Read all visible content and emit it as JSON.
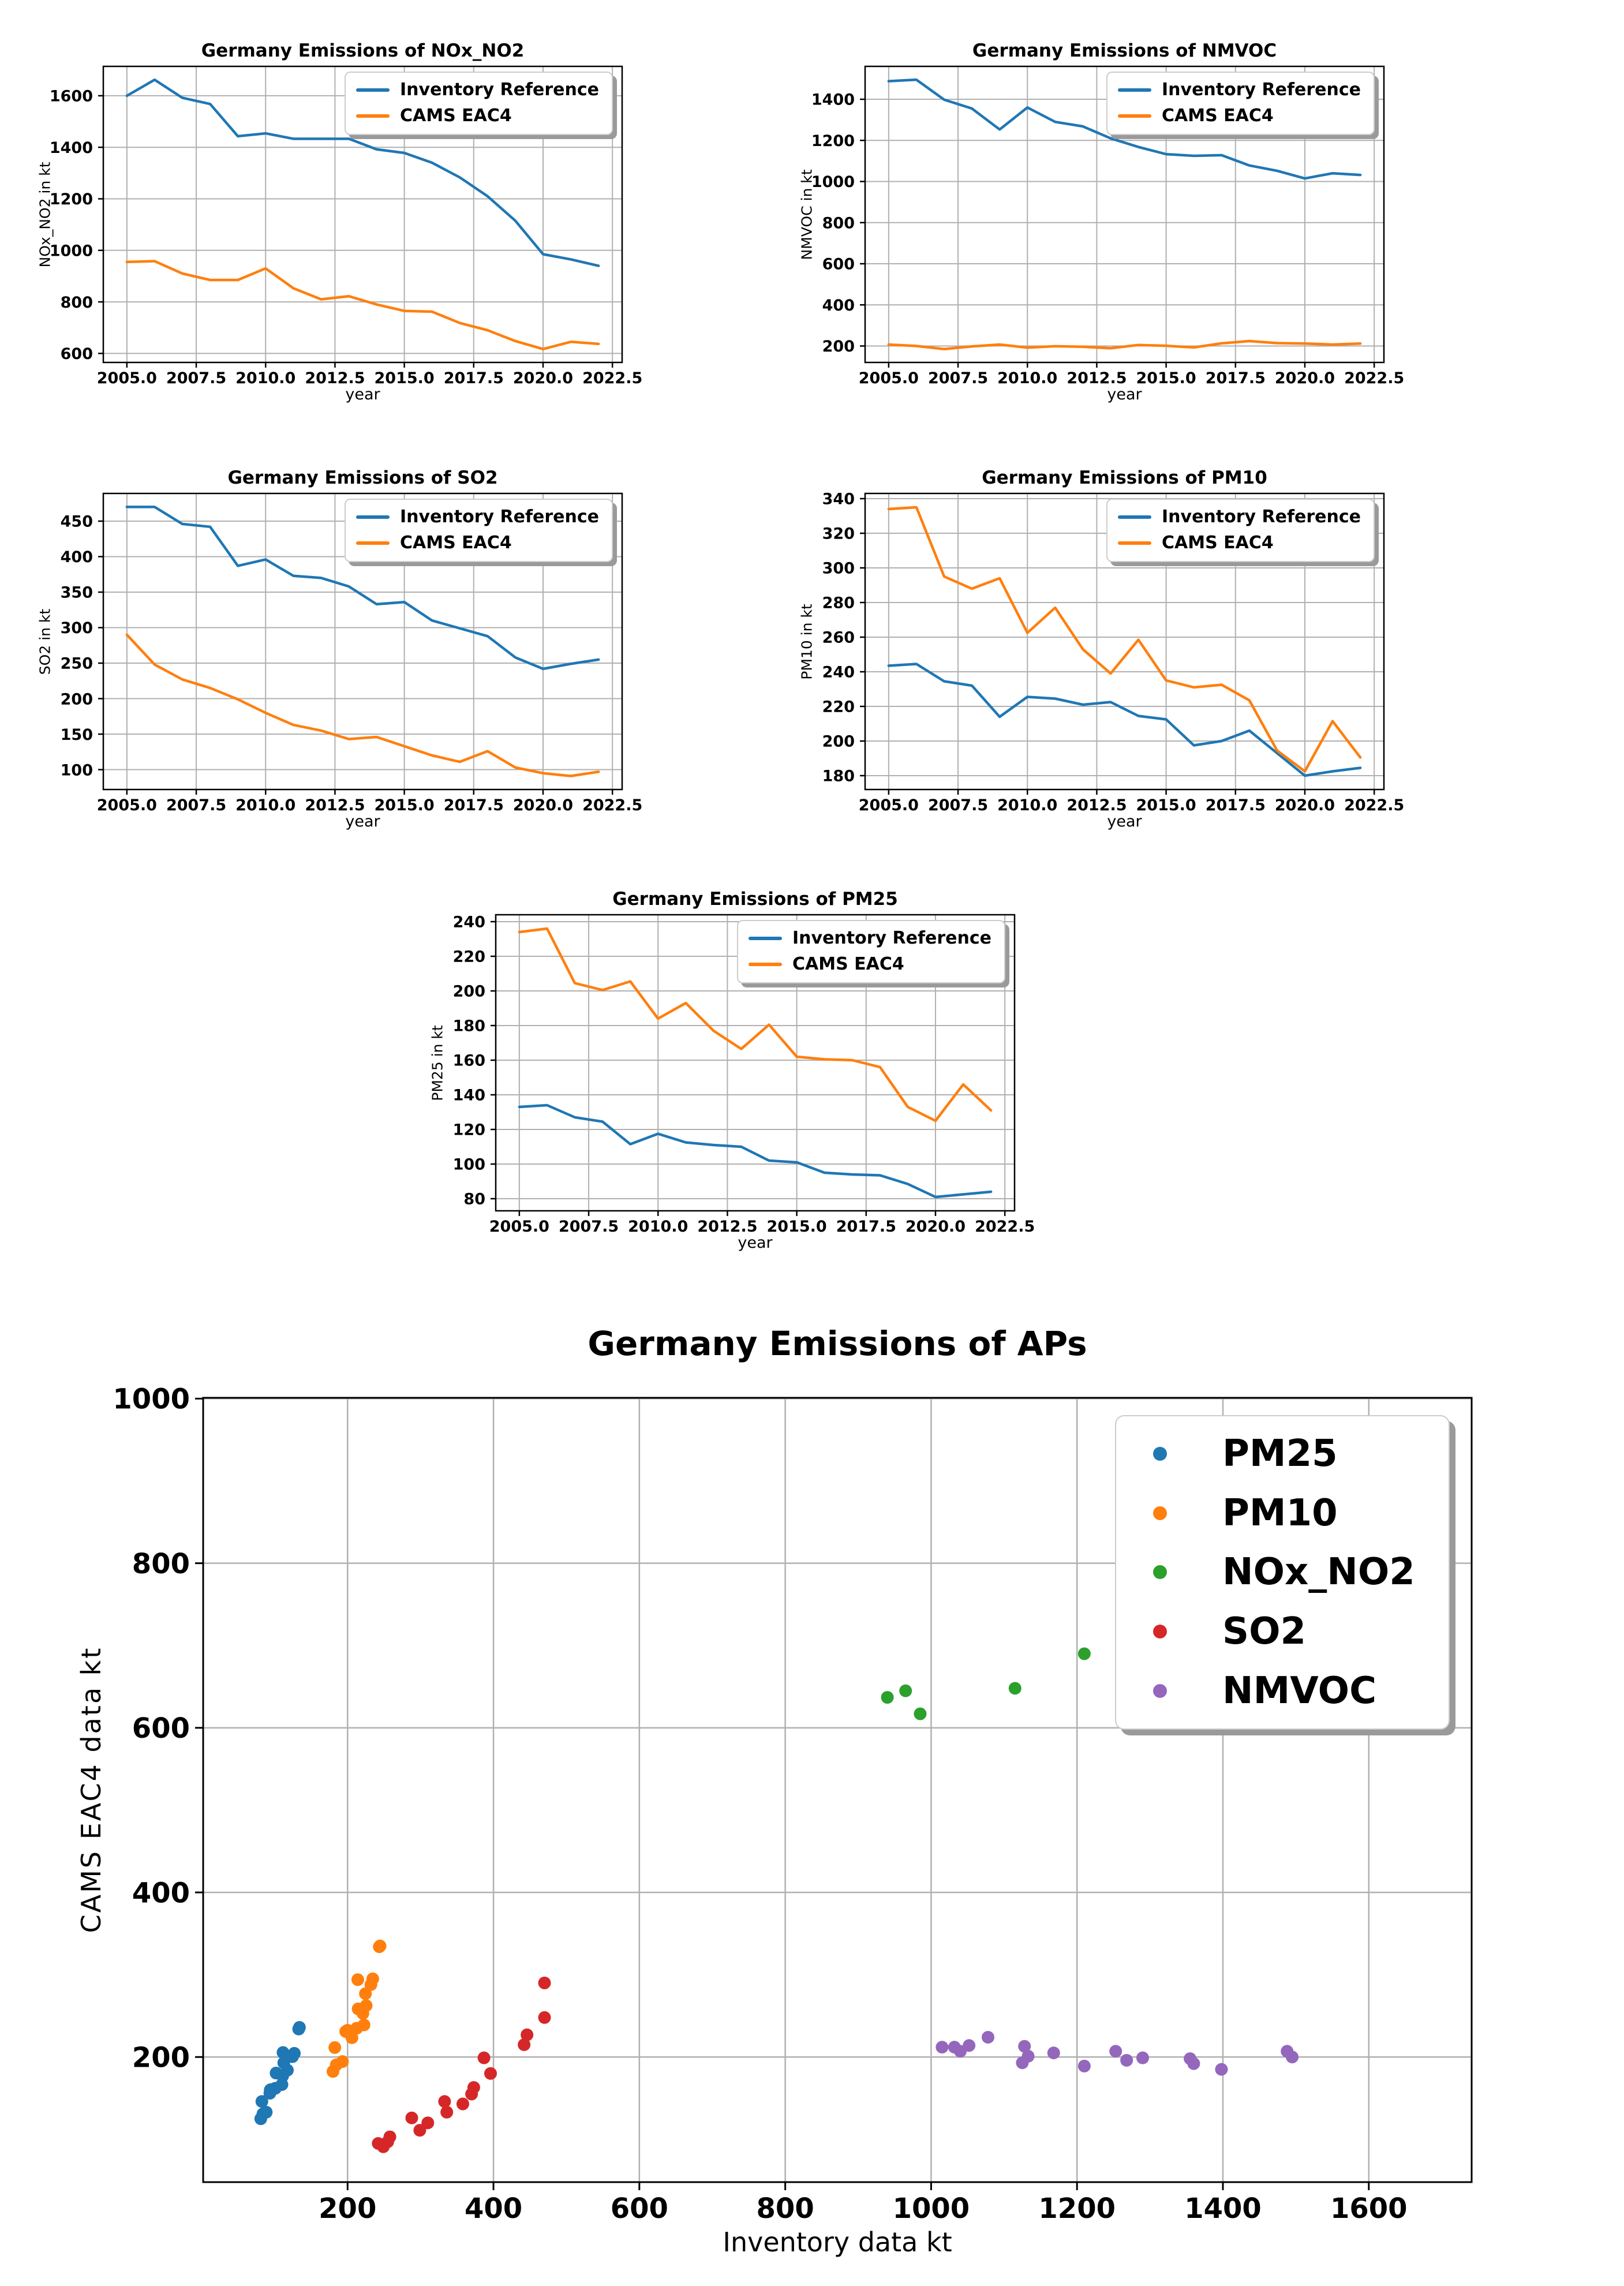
{
  "style": {
    "background": "#ffffff",
    "grid_color": "#b0b0b0",
    "axis_color": "#000000",
    "legend_edge": "#cccccc",
    "legend_shadow": "#9a9a9a"
  },
  "legend_labels": {
    "inventory": "Inventory Reference",
    "cams": "CAMS EAC4"
  },
  "chart_data": [
    {
      "type": "line",
      "title": "Germany Emissions of NOx_NO2",
      "xlabel": "year",
      "ylabel": "NOx_NO2 in kt",
      "x": [
        2005,
        2006,
        2007,
        2008,
        2009,
        2010,
        2011,
        2012,
        2013,
        2014,
        2015,
        2016,
        2017,
        2018,
        2019,
        2020,
        2021,
        2022
      ],
      "xlim": [
        2004.15,
        2022.85
      ],
      "ylim": [
        565,
        1714
      ],
      "xticks": [
        2005,
        2007.5,
        2010,
        2012.5,
        2015,
        2017.5,
        2020,
        2022.5
      ],
      "xtick_labels": [
        "2005.0",
        "2007.5",
        "2010.0",
        "2012.5",
        "2015.0",
        "2017.5",
        "2020.0",
        "2022.5"
      ],
      "yticks": [
        600,
        800,
        1000,
        1200,
        1400,
        1600
      ],
      "grid": true,
      "legend_position": "upper right",
      "series": [
        {
          "name": "Inventory Reference",
          "color": "#1f77b4",
          "values": [
            1600,
            1662,
            1592,
            1568,
            1443,
            1454,
            1433,
            1433,
            1433,
            1392,
            1378,
            1340,
            1283,
            1210,
            1115,
            985,
            965,
            940
          ]
        },
        {
          "name": "CAMS EAC4",
          "color": "#ff7f0e",
          "values": [
            955,
            958,
            910,
            885,
            885,
            930,
            853,
            810,
            822,
            790,
            765,
            762,
            718,
            690,
            648,
            617,
            645,
            637
          ]
        }
      ]
    },
    {
      "type": "line",
      "title": "Germany Emissions of NMVOC",
      "xlabel": "year",
      "ylabel": "NMVOC in kt",
      "x": [
        2005,
        2006,
        2007,
        2008,
        2009,
        2010,
        2011,
        2012,
        2013,
        2014,
        2015,
        2016,
        2017,
        2018,
        2019,
        2020,
        2021,
        2022
      ],
      "xlim": [
        2004.15,
        2022.85
      ],
      "ylim": [
        120,
        1560
      ],
      "xticks": [
        2005,
        2007.5,
        2010,
        2012.5,
        2015,
        2017.5,
        2020,
        2022.5
      ],
      "xtick_labels": [
        "2005.0",
        "2007.5",
        "2010.0",
        "2012.5",
        "2015.0",
        "2017.5",
        "2020.0",
        "2022.5"
      ],
      "yticks": [
        200,
        400,
        600,
        800,
        1000,
        1200,
        1400
      ],
      "grid": true,
      "legend_position": "upper right",
      "series": [
        {
          "name": "Inventory Reference",
          "color": "#1f77b4",
          "values": [
            1488,
            1495,
            1398,
            1355,
            1253,
            1360,
            1290,
            1268,
            1210,
            1168,
            1133,
            1125,
            1128,
            1078,
            1052,
            1015,
            1040,
            1032
          ]
        },
        {
          "name": "CAMS EAC4",
          "color": "#ff7f0e",
          "values": [
            207,
            200,
            185,
            198,
            207,
            192,
            199,
            196,
            189,
            205,
            201,
            193,
            213,
            224,
            214,
            212,
            207,
            212
          ]
        }
      ]
    },
    {
      "type": "line",
      "title": "Germany Emissions of SO2",
      "xlabel": "year",
      "ylabel": "SO2 in kt",
      "x": [
        2005,
        2006,
        2007,
        2008,
        2009,
        2010,
        2011,
        2012,
        2013,
        2014,
        2015,
        2016,
        2017,
        2018,
        2019,
        2020,
        2021,
        2022
      ],
      "xlim": [
        2004.15,
        2022.85
      ],
      "ylim": [
        72,
        489
      ],
      "xticks": [
        2005,
        2007.5,
        2010,
        2012.5,
        2015,
        2017.5,
        2020,
        2022.5
      ],
      "xtick_labels": [
        "2005.0",
        "2007.5",
        "2010.0",
        "2012.5",
        "2015.0",
        "2017.5",
        "2020.0",
        "2022.5"
      ],
      "yticks": [
        100,
        150,
        200,
        250,
        300,
        350,
        400,
        450
      ],
      "grid": true,
      "legend_position": "upper right",
      "series": [
        {
          "name": "Inventory Reference",
          "color": "#1f77b4",
          "values": [
            470,
            470,
            446,
            442,
            387,
            396,
            373,
            370,
            358,
            333,
            336,
            310,
            299,
            288,
            258,
            242,
            249,
            255
          ]
        },
        {
          "name": "CAMS EAC4",
          "color": "#ff7f0e",
          "values": [
            290,
            248,
            227,
            215,
            199,
            180,
            163,
            155,
            143,
            146,
            133,
            120,
            111,
            126,
            103,
            95,
            91,
            97
          ]
        }
      ]
    },
    {
      "type": "line",
      "title": "Germany Emissions of PM10",
      "xlabel": "year",
      "ylabel": "PM10 in kt",
      "x": [
        2005,
        2006,
        2007,
        2008,
        2009,
        2010,
        2011,
        2012,
        2013,
        2014,
        2015,
        2016,
        2017,
        2018,
        2019,
        2020,
        2021,
        2022
      ],
      "xlim": [
        2004.15,
        2022.85
      ],
      "ylim": [
        172,
        343
      ],
      "xticks": [
        2005,
        2007.5,
        2010,
        2012.5,
        2015,
        2017.5,
        2020,
        2022.5
      ],
      "xtick_labels": [
        "2005.0",
        "2007.5",
        "2010.0",
        "2012.5",
        "2015.0",
        "2017.5",
        "2020.0",
        "2022.5"
      ],
      "yticks": [
        180,
        200,
        220,
        240,
        260,
        280,
        300,
        320,
        340
      ],
      "grid": true,
      "legend_position": "upper right",
      "series": [
        {
          "name": "Inventory Reference",
          "color": "#1f77b4",
          "values": [
            243.5,
            244.5,
            234.5,
            232,
            214,
            225.5,
            224.5,
            221,
            222.5,
            214.5,
            212.5,
            197.5,
            200,
            206,
            193,
            180,
            182.5,
            184.5
          ]
        },
        {
          "name": "CAMS EAC4",
          "color": "#ff7f0e",
          "values": [
            334,
            335,
            295,
            288,
            294,
            262.5,
            277,
            253,
            239,
            258.5,
            235,
            231,
            232.5,
            223.5,
            194.5,
            182.5,
            211.5,
            190.5
          ]
        }
      ]
    },
    {
      "type": "line",
      "title": "Germany Emissions of PM25",
      "xlabel": "year",
      "ylabel": "PM25 in kt",
      "x": [
        2005,
        2006,
        2007,
        2008,
        2009,
        2010,
        2011,
        2012,
        2013,
        2014,
        2015,
        2016,
        2017,
        2018,
        2019,
        2020,
        2021,
        2022
      ],
      "xlim": [
        2004.15,
        2022.85
      ],
      "ylim": [
        73,
        244
      ],
      "xticks": [
        2005,
        2007.5,
        2010,
        2012.5,
        2015,
        2017.5,
        2020,
        2022.5
      ],
      "xtick_labels": [
        "2005.0",
        "2007.5",
        "2010.0",
        "2012.5",
        "2015.0",
        "2017.5",
        "2020.0",
        "2022.5"
      ],
      "yticks": [
        80,
        100,
        120,
        140,
        160,
        180,
        200,
        220,
        240
      ],
      "grid": true,
      "legend_position": "upper right",
      "series": [
        {
          "name": "Inventory Reference",
          "color": "#1f77b4",
          "values": [
            133,
            134,
            127,
            124.5,
            111.5,
            117.5,
            112.5,
            111,
            110,
            102,
            101,
            95,
            94,
            93.5,
            88.5,
            81,
            82.5,
            84
          ]
        },
        {
          "name": "CAMS EAC4",
          "color": "#ff7f0e",
          "values": [
            234,
            236,
            204.5,
            200.5,
            205.5,
            184,
            193,
            177,
            166.5,
            180.5,
            162,
            160.5,
            160,
            156,
            133,
            125,
            146,
            131
          ]
        }
      ]
    },
    {
      "type": "scatter",
      "title": "Germany Emissions of APs",
      "xlabel": "Inventory data kt",
      "ylabel": "CAMS EAC4 data kt",
      "xlim": [
        2,
        1741
      ],
      "ylim": [
        48,
        1001
      ],
      "xticks": [
        200,
        400,
        600,
        800,
        1000,
        1200,
        1400,
        1600
      ],
      "xtick_labels": [
        "200",
        "400",
        "600",
        "800",
        "1000",
        "1200",
        "1400",
        "1600"
      ],
      "yticks": [
        200,
        400,
        600,
        800,
        1000
      ],
      "grid": true,
      "legend_position": "upper right",
      "series": [
        {
          "name": "PM25",
          "color": "#1f77b4",
          "x": [
            133,
            134,
            127,
            124.5,
            111.5,
            117.5,
            112.5,
            111,
            110,
            102,
            101,
            95,
            94,
            93.5,
            88.5,
            81,
            82.5,
            84
          ],
          "y": [
            234,
            236,
            204.5,
            200.5,
            205.5,
            184,
            193,
            177,
            166.5,
            180.5,
            162,
            160.5,
            160,
            156,
            133,
            125,
            146,
            131
          ]
        },
        {
          "name": "PM10",
          "color": "#ff7f0e",
          "x": [
            243.5,
            244.5,
            234.5,
            232,
            214,
            225.5,
            224.5,
            221,
            222.5,
            214.5,
            212.5,
            197.5,
            200,
            206,
            193,
            180,
            182.5,
            184.5
          ],
          "y": [
            334,
            335,
            295,
            288,
            294,
            262.5,
            277,
            253,
            239,
            258.5,
            235,
            231,
            232.5,
            223.5,
            194.5,
            182.5,
            211.5,
            190.5
          ]
        },
        {
          "name": "NOx_NO2",
          "color": "#2ca02c",
          "x": [
            1600,
            1662,
            1592,
            1568,
            1443,
            1454,
            1433,
            1433,
            1433,
            1392,
            1378,
            1340,
            1283,
            1210,
            1115,
            985,
            965,
            940
          ],
          "y": [
            955,
            958,
            910,
            885,
            885,
            930,
            853,
            810,
            822,
            790,
            765,
            762,
            718,
            690,
            648,
            617,
            645,
            637
          ]
        },
        {
          "name": "SO2",
          "color": "#d62728",
          "x": [
            470,
            470,
            446,
            442,
            387,
            396,
            373,
            370,
            358,
            333,
            336,
            310,
            299,
            288,
            258,
            242,
            249,
            255
          ],
          "y": [
            290,
            248,
            227,
            215,
            199,
            180,
            163,
            155,
            143,
            146,
            133,
            120,
            111,
            126,
            103,
            95,
            91,
            97
          ]
        },
        {
          "name": "NMVOC",
          "color": "#9467bd",
          "x": [
            1488,
            1495,
            1398,
            1355,
            1253,
            1360,
            1290,
            1268,
            1210,
            1168,
            1133,
            1125,
            1128,
            1078,
            1052,
            1015,
            1040,
            1032
          ],
          "y": [
            207,
            200,
            185,
            198,
            207,
            192,
            199,
            196,
            189,
            205,
            201,
            193,
            213,
            224,
            214,
            212,
            207,
            212
          ]
        }
      ]
    }
  ]
}
